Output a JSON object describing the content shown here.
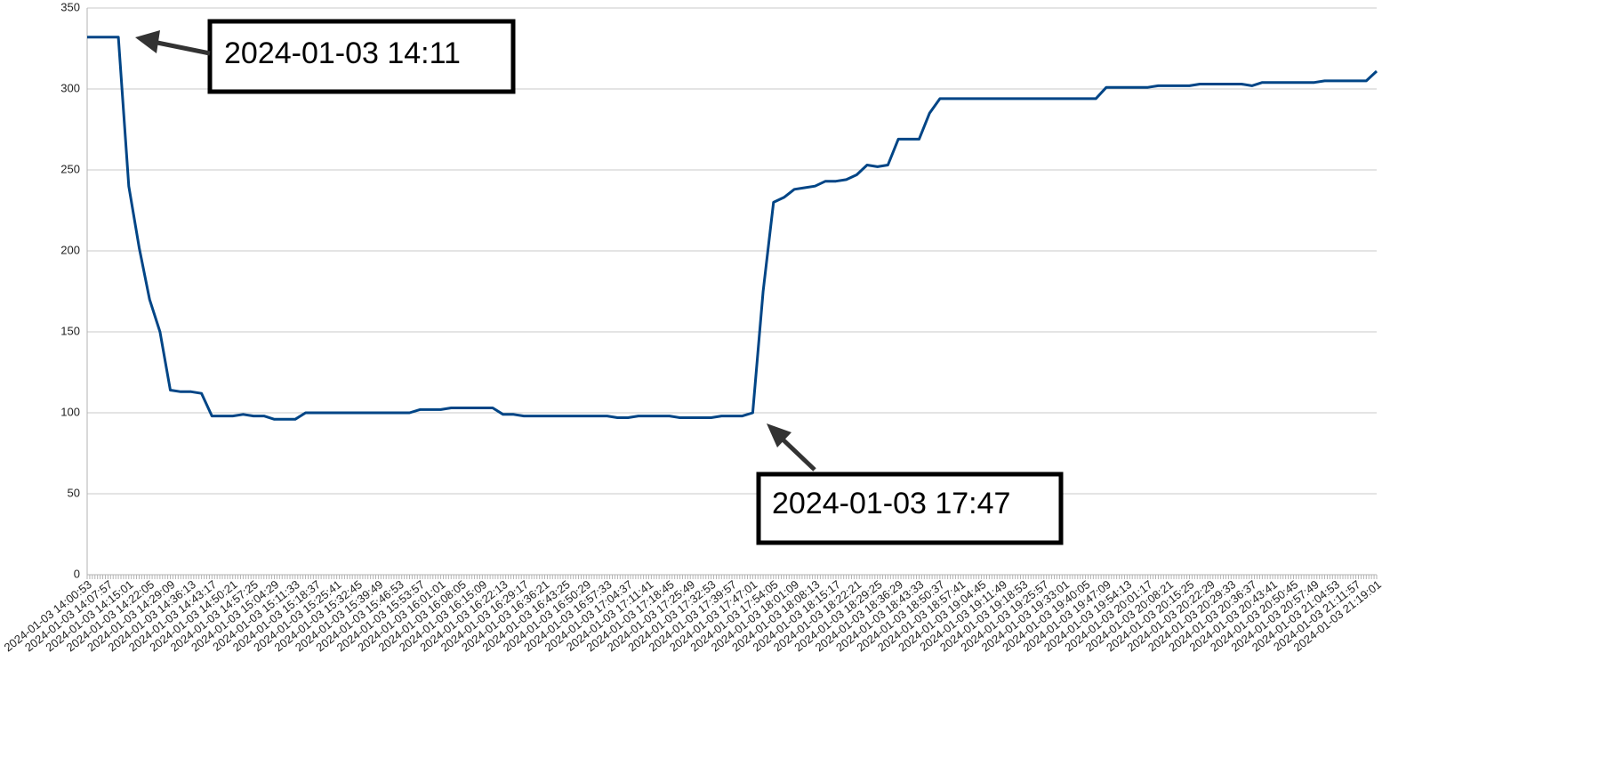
{
  "chart_data": {
    "type": "line",
    "categories": [
      "2024-01-03 14:00:53",
      null,
      "2024-01-03 14:07:57",
      null,
      "2024-01-03 14:15:01",
      null,
      "2024-01-03 14:22:05",
      null,
      "2024-01-03 14:29:09",
      null,
      "2024-01-03 14:36:13",
      null,
      "2024-01-03 14:43:17",
      null,
      "2024-01-03 14:50:21",
      null,
      "2024-01-03 14:57:25",
      null,
      "2024-01-03 15:04:29",
      null,
      "2024-01-03 15:11:33",
      null,
      "2024-01-03 15:18:37",
      null,
      "2024-01-03 15:25:41",
      null,
      "2024-01-03 15:32:45",
      null,
      "2024-01-03 15:39:49",
      null,
      "2024-01-03 15:46:53",
      null,
      "2024-01-03 15:53:57",
      null,
      "2024-01-03 16:01:01",
      null,
      "2024-01-03 16:08:05",
      null,
      "2024-01-03 16:15:09",
      null,
      "2024-01-03 16:22:13",
      null,
      "2024-01-03 16:29:17",
      null,
      "2024-01-03 16:36:21",
      null,
      "2024-01-03 16:43:25",
      null,
      "2024-01-03 16:50:29",
      null,
      "2024-01-03 16:57:33",
      null,
      "2024-01-03 17:04:37",
      null,
      "2024-01-03 17:11:41",
      null,
      "2024-01-03 17:18:45",
      null,
      "2024-01-03 17:25:49",
      null,
      "2024-01-03 17:32:53",
      null,
      "2024-01-03 17:39:57",
      null,
      "2024-01-03 17:47:01",
      null,
      "2024-01-03 17:54:05",
      null,
      "2024-01-03 18:01:09",
      null,
      "2024-01-03 18:08:13",
      null,
      "2024-01-03 18:15:17",
      null,
      "2024-01-03 18:22:21",
      null,
      "2024-01-03 18:29:25",
      null,
      "2024-01-03 18:36:29",
      null,
      "2024-01-03 18:43:33",
      null,
      "2024-01-03 18:50:37",
      null,
      "2024-01-03 18:57:41",
      null,
      "2024-01-03 19:04:45",
      null,
      "2024-01-03 19:11:49",
      null,
      "2024-01-03 19:18:53",
      null,
      "2024-01-03 19:25:57",
      null,
      "2024-01-03 19:33:01",
      null,
      "2024-01-03 19:40:05",
      null,
      "2024-01-03 19:47:09",
      null,
      "2024-01-03 19:54:13",
      null,
      "2024-01-03 20:01:17",
      null,
      "2024-01-03 20:08:21",
      null,
      "2024-01-03 20:15:25",
      null,
      "2024-01-03 20:22:29",
      null,
      "2024-01-03 20:29:33",
      null,
      "2024-01-03 20:36:37",
      null,
      "2024-01-03 20:43:41",
      null,
      "2024-01-03 20:50:45",
      null,
      "2024-01-03 20:57:49",
      null,
      "2024-01-03 21:04:53",
      null,
      "2024-01-03 21:11:57",
      null,
      "2024-01-03 21:19:01"
    ],
    "values": [
      332,
      332,
      332,
      332,
      240,
      202,
      170,
      150,
      114,
      113,
      113,
      112,
      98,
      98,
      98,
      99,
      98,
      98,
      96,
      96,
      96,
      100,
      100,
      100,
      100,
      100,
      100,
      100,
      100,
      100,
      100,
      100,
      102,
      102,
      102,
      103,
      103,
      103,
      103,
      103,
      99,
      99,
      98,
      98,
      98,
      98,
      98,
      98,
      98,
      98,
      98,
      97,
      97,
      98,
      98,
      98,
      98,
      97,
      97,
      97,
      97,
      98,
      98,
      98,
      100,
      175,
      230,
      233,
      238,
      239,
      240,
      243,
      243,
      244,
      247,
      253,
      252,
      253,
      269,
      269,
      269,
      285,
      294,
      294,
      294,
      294,
      294,
      294,
      294,
      294,
      294,
      294,
      294,
      294,
      294,
      294,
      294,
      294,
      301,
      301,
      301,
      301,
      301,
      302,
      302,
      302,
      302,
      303,
      303,
      303,
      303,
      303,
      302,
      304,
      304,
      304,
      304,
      304,
      304,
      305,
      305,
      305,
      305,
      305,
      311
    ],
    "color": "#004586",
    "ylim": [
      0,
      350
    ],
    "yticks": [
      0,
      50,
      100,
      150,
      200,
      250,
      300,
      350
    ],
    "grid": true,
    "annotations": [
      {
        "text": "2024-01-03 14:11"
      },
      {
        "text": "2024-01-03 17:47"
      }
    ]
  }
}
